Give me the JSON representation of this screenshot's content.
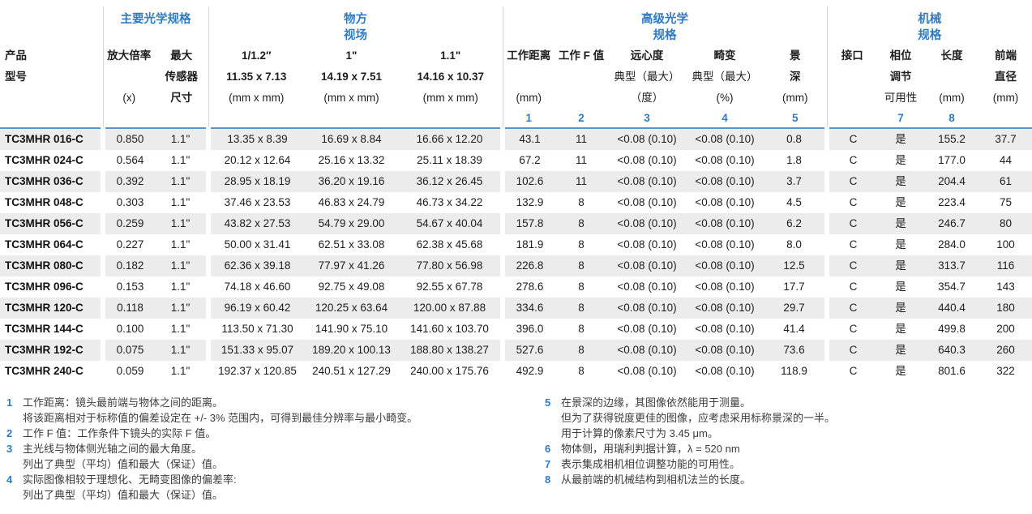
{
  "colors": {
    "accent_blue": "#2f7bc3",
    "header_rule_blue": "#5f93c8",
    "row_stripe_gray": "#ececec",
    "separator_gray": "#d8d8d8"
  },
  "table": {
    "groups": [
      {
        "label_lines": []
      },
      {
        "label_lines": [
          "主要光学规格"
        ]
      },
      {
        "label_lines": [
          "物方",
          "视场"
        ]
      },
      {
        "label_lines": [
          "高级光学",
          "规格"
        ]
      },
      {
        "label_lines": [
          "机械",
          "规格"
        ]
      }
    ],
    "columns": [
      {
        "lines": [
          "产品",
          "型号",
          ""
        ],
        "num": ""
      },
      {
        "lines": [
          "放大倍率",
          "",
          "(x)"
        ],
        "num": ""
      },
      {
        "lines": [
          "最大",
          "传感器",
          "尺寸"
        ],
        "num": ""
      },
      {
        "lines": [
          "1/1.2″",
          "11.35 x 7.13",
          "(mm x mm)"
        ],
        "num": ""
      },
      {
        "lines": [
          "1\"",
          "14.19 x 7.51",
          "(mm x mm)"
        ],
        "num": ""
      },
      {
        "lines": [
          "1.1\"",
          "14.16 x 10.37",
          "(mm x mm)"
        ],
        "num": ""
      },
      {
        "lines": [
          "工作距离",
          "",
          "(mm)"
        ],
        "num": "1"
      },
      {
        "lines": [
          "工作 F 值",
          "",
          ""
        ],
        "num": "2"
      },
      {
        "lines": [
          "远心度",
          "典型（最大）",
          "（度）"
        ],
        "num": "3"
      },
      {
        "lines": [
          "畸变",
          "典型（最大）",
          "(%)"
        ],
        "num": "4"
      },
      {
        "lines": [
          "景",
          "深",
          "(mm)"
        ],
        "num": "5"
      },
      {
        "lines": [
          "接口",
          "",
          ""
        ],
        "num": ""
      },
      {
        "lines": [
          "相位",
          "调节",
          "可用性"
        ],
        "num": "7"
      },
      {
        "lines": [
          "长度",
          "",
          "(mm)"
        ],
        "num": "8"
      },
      {
        "lines": [
          "前端",
          "直径",
          "(mm)"
        ],
        "num": ""
      }
    ],
    "rows": [
      [
        "TC3MHR 016-C",
        "0.850",
        "1.1\"",
        "13.35 x 8.39",
        "16.69 x 8.84",
        "16.66 x 12.20",
        "43.1",
        "11",
        "<0.08 (0.10)",
        "<0.08 (0.10)",
        "0.8",
        "C",
        "是",
        "155.2",
        "37.7"
      ],
      [
        "TC3MHR 024-C",
        "0.564",
        "1.1\"",
        "20.12 x 12.64",
        "25.16 x 13.32",
        "25.11 x 18.39",
        "67.2",
        "11",
        "<0.08 (0.10)",
        "<0.08 (0.10)",
        "1.8",
        "C",
        "是",
        "177.0",
        "44"
      ],
      [
        "TC3MHR 036-C",
        "0.392",
        "1.1\"",
        "28.95 x 18.19",
        "36.20 x 19.16",
        "36.12 x 26.45",
        "102.6",
        "11",
        "<0.08 (0.10)",
        "<0.08 (0.10)",
        "3.7",
        "C",
        "是",
        "204.4",
        "61"
      ],
      [
        "TC3MHR 048-C",
        "0.303",
        "1.1\"",
        "37.46 x 23.53",
        "46.83 x 24.79",
        "46.73 x 34.22",
        "132.9",
        "8",
        "<0.08 (0.10)",
        "<0.08 (0.10)",
        "4.5",
        "C",
        "是",
        "223.4",
        "75"
      ],
      [
        "TC3MHR 056-C",
        "0.259",
        "1.1\"",
        "43.82 x 27.53",
        "54.79 x 29.00",
        "54.67 x 40.04",
        "157.8",
        "8",
        "<0.08 (0.10)",
        "<0.08 (0.10)",
        "6.2",
        "C",
        "是",
        "246.7",
        "80"
      ],
      [
        "TC3MHR 064-C",
        "0.227",
        "1.1\"",
        "50.00 x 31.41",
        "62.51 x 33.08",
        "62.38 x 45.68",
        "181.9",
        "8",
        "<0.08 (0.10)",
        "<0.08 (0.10)",
        "8.0",
        "C",
        "是",
        "284.0",
        "100"
      ],
      [
        "TC3MHR 080-C",
        "0.182",
        "1.1\"",
        "62.36 x 39.18",
        "77.97 x 41.26",
        "77.80 x 56.98",
        "226.8",
        "8",
        "<0.08 (0.10)",
        "<0.08 (0.10)",
        "12.5",
        "C",
        "是",
        "313.7",
        "116"
      ],
      [
        "TC3MHR 096-C",
        "0.153",
        "1.1\"",
        "74.18 x 46.60",
        "92.75 x 49.08",
        "92.55 x 67.78",
        "278.6",
        "8",
        "<0.08 (0.10)",
        "<0.08 (0.10)",
        "17.7",
        "C",
        "是",
        "354.7",
        "143"
      ],
      [
        "TC3MHR 120-C",
        "0.118",
        "1.1\"",
        "96.19 x 60.42",
        "120.25 x 63.64",
        "120.00 x 87.88",
        "334.6",
        "8",
        "<0.08 (0.10)",
        "<0.08 (0.10)",
        "29.7",
        "C",
        "是",
        "440.4",
        "180"
      ],
      [
        "TC3MHR 144-C",
        "0.100",
        "1.1\"",
        "113.50 x 71.30",
        "141.90 x 75.10",
        "141.60 x 103.70",
        "396.0",
        "8",
        "<0.08 (0.10)",
        "<0.08 (0.10)",
        "41.4",
        "C",
        "是",
        "499.8",
        "200"
      ],
      [
        "TC3MHR 192-C",
        "0.075",
        "1.1\"",
        "151.33 x 95.07",
        "189.20 x 100.13",
        "188.80 x 138.27",
        "527.6",
        "8",
        "<0.08 (0.10)",
        "<0.08 (0.10)",
        "73.6",
        "C",
        "是",
        "640.3",
        "260"
      ],
      [
        "TC3MHR 240-C",
        "0.059",
        "1.1\"",
        "192.37 x 120.85",
        "240.51 x 127.29",
        "240.00 x 175.76",
        "492.9",
        "8",
        "<0.08 (0.10)",
        "<0.08 (0.10)",
        "118.9",
        "C",
        "是",
        "801.6",
        "322"
      ]
    ]
  },
  "footnotes": {
    "left": [
      {
        "num": "1",
        "lines": [
          "工作距离：镜头最前端与物体之间的距离。",
          "将该距离相对于标称值的偏差设定在 +/- 3% 范围内，可得到最佳分辨率与最小畸变。"
        ]
      },
      {
        "num": "2",
        "lines": [
          "工作 F 值：工作条件下镜头的实际 F 值。"
        ]
      },
      {
        "num": "3",
        "lines": [
          "主光线与物体侧光轴之间的最大角度。",
          "列出了典型（平均）值和最大（保证）值。"
        ]
      },
      {
        "num": "4",
        "lines": [
          "实际图像相较于理想化、无畸变图像的偏差率:",
          "列出了典型（平均）值和最大（保证）值。"
        ]
      }
    ],
    "right": [
      {
        "num": "5",
        "lines": [
          "在景深的边缘，其图像依然能用于测量。",
          "但为了获得锐度更佳的图像，应考虑采用标称景深的一半。",
          "用于计算的像素尺寸为 3.45 μm。"
        ]
      },
      {
        "num": "6",
        "lines": [
          "物体侧，用瑞利判据计算，λ = 520 nm"
        ]
      },
      {
        "num": "7",
        "lines": [
          "表示集成相机相位调整功能的可用性。"
        ]
      },
      {
        "num": "8",
        "lines": [
          "从最前端的机械结构到相机法兰的长度。"
        ]
      }
    ]
  }
}
